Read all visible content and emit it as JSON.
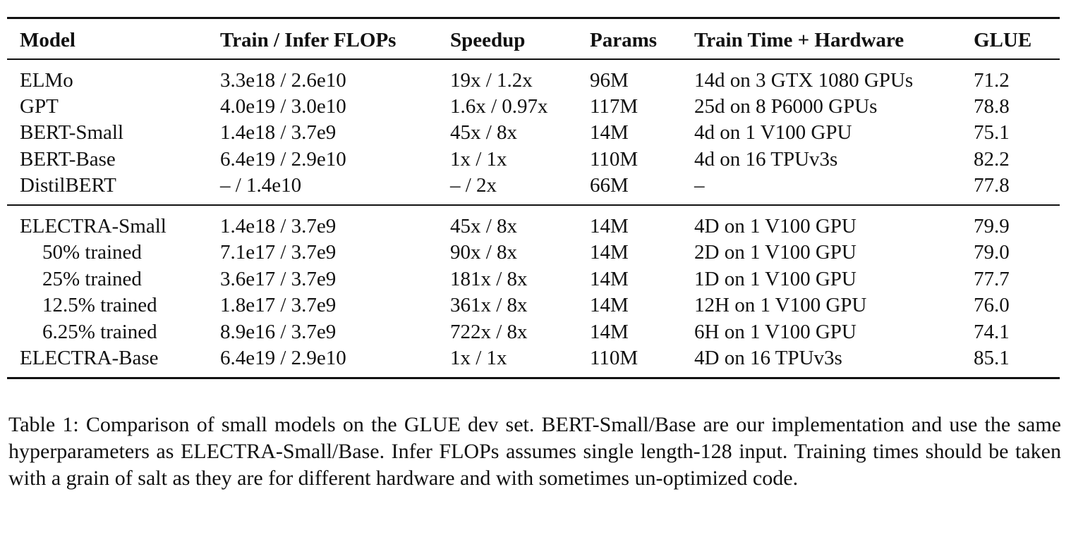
{
  "table": {
    "headers": [
      "Model",
      "Train / Infer FLOPs",
      "Speedup",
      "Params",
      "Train Time + Hardware",
      "GLUE"
    ],
    "group1": [
      {
        "model": "ELMo",
        "flops": "3.3e18 / 2.6e10",
        "speedup": "19x / 1.2x",
        "params": "96M",
        "time": "14d on 3 GTX 1080 GPUs",
        "glue": "71.2"
      },
      {
        "model": "GPT",
        "flops": "4.0e19 / 3.0e10",
        "speedup": "1.6x / 0.97x",
        "params": "117M",
        "time": "25d on 8 P6000 GPUs",
        "glue": "78.8"
      },
      {
        "model": "BERT-Small",
        "flops": "1.4e18 / 3.7e9",
        "speedup": "45x / 8x",
        "params": "14M",
        "time": "4d on 1 V100 GPU",
        "glue": "75.1"
      },
      {
        "model": "BERT-Base",
        "flops": "6.4e19 / 2.9e10",
        "speedup": "1x / 1x",
        "params": "110M",
        "time": "4d on 16 TPUv3s",
        "glue": "82.2"
      },
      {
        "model": "DistilBERT",
        "flops": "– / 1.4e10",
        "speedup": "– / 2x",
        "params": "66M",
        "time": "–",
        "glue": "77.8"
      }
    ],
    "group2": [
      {
        "model": "ELECTRA-Small",
        "flops": "1.4e18 / 3.7e9",
        "speedup": "45x / 8x",
        "params": "14M",
        "time": "4D on 1 V100 GPU",
        "glue": "79.9"
      },
      {
        "model": "50% trained",
        "flops": "7.1e17 / 3.7e9",
        "speedup": "90x / 8x",
        "params": "14M",
        "time": "2D on 1 V100 GPU",
        "glue": "79.0"
      },
      {
        "model": "25% trained",
        "flops": "3.6e17 / 3.7e9",
        "speedup": "181x / 8x",
        "params": "14M",
        "time": "1D on 1 V100 GPU",
        "glue": "77.7"
      },
      {
        "model": "12.5% trained",
        "flops": "1.8e17 / 3.7e9",
        "speedup": "361x / 8x",
        "params": "14M",
        "time": "12H on 1 V100 GPU",
        "glue": "76.0"
      },
      {
        "model": "6.25% trained",
        "flops": "8.9e16 / 3.7e9",
        "speedup": "722x / 8x",
        "params": "14M",
        "time": "6H on 1 V100 GPU",
        "glue": "74.1"
      },
      {
        "model": "ELECTRA-Base",
        "flops": "6.4e19 / 2.9e10",
        "speedup": "1x / 1x",
        "params": "110M",
        "time": "4D on 16 TPUv3s",
        "glue": "85.1"
      }
    ]
  },
  "caption": "Table 1: Comparison of small models on the GLUE dev set. BERT-Small/Base are our implementation and use the same hyperparameters as ELECTRA-Small/Base. Infer FLOPs assumes single length-128 input. Training times should be taken with a grain of salt as they are for different hardware and with sometimes un-optimized code."
}
